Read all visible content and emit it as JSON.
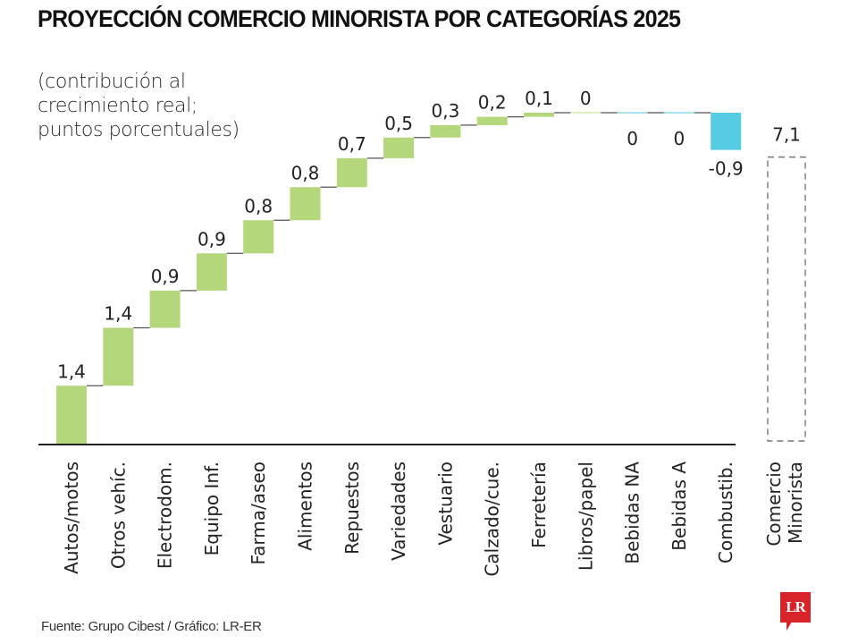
{
  "title": "PROYECCIÓN COMERCIO MINORISTA POR CATEGORÍAS 2025",
  "subtitle_lines": [
    "(contribución al",
    "crecimiento real;",
    "puntos porcentuales)"
  ],
  "source": "Fuente: Grupo Cibest / Gráfico: LR-ER",
  "logo_text": "LR",
  "colors": {
    "positive": "#b3d77a",
    "negative": "#55cbe4",
    "zero_positive": "#dfeec6",
    "zero_negative": "#a9e2ee",
    "connector": "#555555",
    "axis": "#222222",
    "total_border": "#777777",
    "brand": "#d8232a"
  },
  "chart_data": {
    "type": "waterfall",
    "title": "PROYECCIÓN COMERCIO MINORISTA POR CATEGORÍAS 2025",
    "subtitle": "(contribución al crecimiento real; puntos porcentuales)",
    "xlabel": "",
    "ylabel": "puntos porcentuales",
    "categories": [
      "Autos/motos",
      "Otros vehíc.",
      "Electrodom.",
      "Equipo Inf.",
      "Farma/aseo",
      "Alimentos",
      "Repuestos",
      "Variedades",
      "Vestuario",
      "Calzado/cue.",
      "Ferretería",
      "Libros/papel",
      "Bebidas NA",
      "Bebidas A",
      "Combustib."
    ],
    "values": [
      1.4,
      1.4,
      0.9,
      0.9,
      0.8,
      0.8,
      0.7,
      0.5,
      0.3,
      0.2,
      0.1,
      0,
      0,
      0,
      -0.9
    ],
    "value_labels": [
      "1,4",
      "1,4",
      "0,9",
      "0,9",
      "0,8",
      "0,8",
      "0,7",
      "0,5",
      "0,3",
      "0,2",
      "0,1",
      "0",
      "0",
      "0",
      "-0,9"
    ],
    "zero_sign": [
      null,
      null,
      null,
      null,
      null,
      null,
      null,
      null,
      null,
      null,
      null,
      "positive",
      "negative",
      "negative",
      null
    ],
    "total": {
      "category_lines": [
        "Comercio",
        "Minorista"
      ],
      "value": 7.1,
      "value_label": "7,1",
      "style": "dashed-outline"
    },
    "ylim": [
      0,
      8.0
    ],
    "grid": false,
    "legend": "none"
  }
}
